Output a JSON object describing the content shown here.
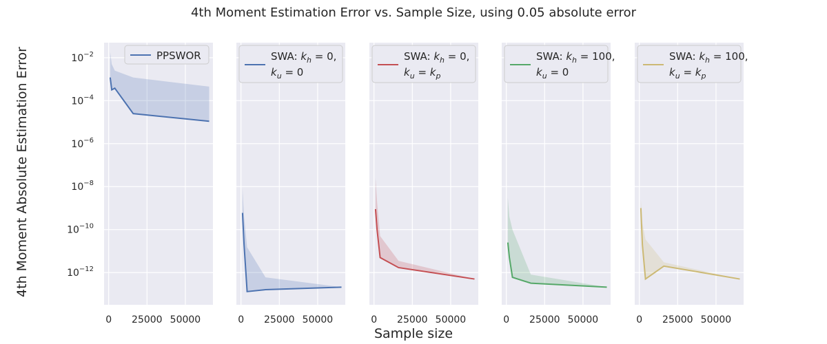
{
  "figure": {
    "title": "4th Moment Estimation Error vs. Sample Size, using 0.05 absolute error",
    "xlabel": "Sample size",
    "ylabel": "4th Moment Absolute Estimation Error"
  },
  "chart_data": {
    "type": "line",
    "yscale": "log",
    "ylim_exp": [
      -13.5,
      -1.3
    ],
    "xlim": [
      -3000,
      68000
    ],
    "shared_y": true,
    "grid": true,
    "y_ticks": [
      {
        "base": "10",
        "exp": "−2",
        "value_exp": -2
      },
      {
        "base": "10",
        "exp": "−4",
        "value_exp": -4
      },
      {
        "base": "10",
        "exp": "−6",
        "value_exp": -6
      },
      {
        "base": "10",
        "exp": "−8",
        "value_exp": -8
      },
      {
        "base": "10",
        "exp": "−10",
        "value_exp": -10
      },
      {
        "base": "10",
        "exp": "−12",
        "value_exp": -12
      }
    ],
    "x_ticks": [
      {
        "label": "0",
        "value": 0
      },
      {
        "label": "25000",
        "value": 25000
      },
      {
        "label": "50000",
        "value": 50000
      }
    ],
    "panels": [
      {
        "legend": {
          "text": "PPSWOR",
          "line2": ""
        },
        "color": "#4c72b0",
        "x": [
          1000,
          2000,
          4000,
          16000,
          65536
        ],
        "y": [
          0.0012,
          0.00032,
          0.00038,
          2.5e-05,
          1.1e-05
        ],
        "upper": [
          0.018,
          0.005,
          0.0025,
          0.0012,
          0.00045
        ],
        "lower": [
          0.0012,
          0.00032,
          0.00038,
          2.5e-05,
          1.1e-05
        ]
      },
      {
        "legend": {
          "text": "SWA: kh=0,",
          "line2": "ku=0"
        },
        "color": "#4c72b0",
        "x": [
          1000,
          2000,
          4000,
          16000,
          65536
        ],
        "y": [
          6e-10,
          2e-11,
          1.3e-13,
          1.6e-13,
          2.1e-13
        ],
        "upper": [
          8e-09,
          4e-10,
          1.5e-11,
          6e-13,
          2.1e-13
        ],
        "lower": [
          6e-10,
          2e-11,
          1.3e-13,
          1.6e-13,
          2.1e-13
        ]
      },
      {
        "legend": {
          "text": "SWA: kh=0,",
          "line2": "ku=kp"
        },
        "color": "#c44e52",
        "x": [
          1000,
          2000,
          4000,
          16000,
          65536
        ],
        "y": [
          9e-10,
          1e-10,
          5e-12,
          1.7e-12,
          5e-13
        ],
        "upper": [
          2.5e-08,
          2e-09,
          5e-11,
          3.5e-12,
          5e-13
        ],
        "lower": [
          9e-10,
          1e-10,
          5e-12,
          1.7e-12,
          5e-13
        ]
      },
      {
        "legend": {
          "text": "SWA: kh=100,",
          "line2": "ku=0"
        },
        "color": "#55a868",
        "x": [
          1000,
          2000,
          4000,
          16000,
          65536
        ],
        "y": [
          2.5e-11,
          5e-12,
          6e-13,
          3.2e-13,
          2.1e-13
        ],
        "upper": [
          3e-09,
          4e-10,
          1e-10,
          8e-13,
          2.1e-13
        ],
        "lower": [
          2.5e-11,
          5e-12,
          6e-13,
          3.2e-13,
          2.1e-13
        ]
      },
      {
        "legend": {
          "text": "SWA: kh=100,",
          "line2": "ku=kp"
        },
        "color": "#ccb974",
        "x": [
          1000,
          2000,
          4000,
          16000,
          65536
        ],
        "y": [
          1e-09,
          2e-11,
          5e-13,
          2e-12,
          5e-13
        ],
        "upper": [
          2.5e-09,
          2e-10,
          3.5e-11,
          3e-12,
          5e-13
        ],
        "lower": [
          1e-09,
          2e-11,
          5e-13,
          2e-12,
          5e-13
        ]
      }
    ]
  }
}
